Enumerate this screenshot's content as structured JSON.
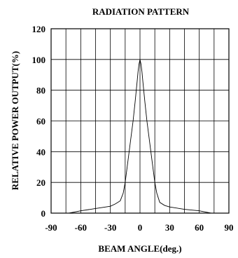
{
  "chart_data": {
    "type": "line",
    "title": "RADIATION PATTERN",
    "xlabel": "BEAM ANGLE(deg.)",
    "ylabel": "RELATIVE POWER OUTPUT(%)",
    "xlim": [
      -90,
      90
    ],
    "ylim": [
      0,
      120
    ],
    "xticks": [
      "-90",
      "-60",
      "-30",
      "0",
      "30",
      "60",
      "90"
    ],
    "yticks": [
      "0",
      "20",
      "40",
      "60",
      "80",
      "100",
      "120"
    ],
    "grid": true,
    "series": [
      {
        "x": [
          -72,
          -60,
          -45,
          -30,
          -25,
          -20,
          -17,
          -15,
          -13,
          -10,
          -7,
          -5,
          -3,
          -2,
          -1,
          0,
          1,
          2,
          3,
          5,
          7,
          10,
          13,
          15,
          17,
          20,
          25,
          30,
          45,
          60,
          72
        ],
        "y": [
          0,
          1.5,
          3,
          4.5,
          6,
          8,
          13,
          20,
          30,
          45,
          60,
          72,
          85,
          92,
          97,
          100,
          97,
          92,
          85,
          72,
          60,
          45,
          30,
          20,
          13,
          7,
          5,
          4,
          2.5,
          1.5,
          0
        ]
      }
    ]
  }
}
